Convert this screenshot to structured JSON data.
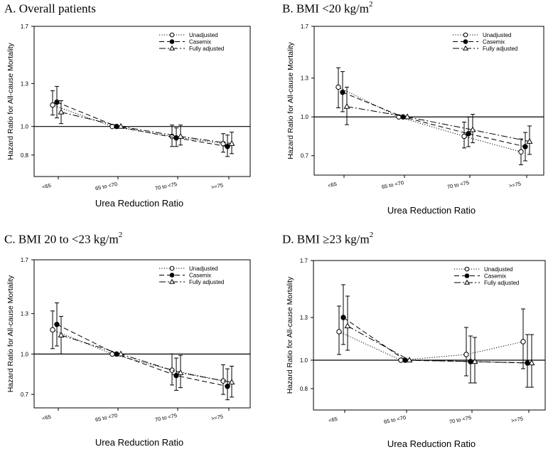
{
  "figure": {
    "panel_prefixes": [
      "A.",
      "B.",
      "C.",
      "D."
    ]
  },
  "chart_data": [
    {
      "type": "line",
      "title_prefix": "A.",
      "title_main": "Overall patients",
      "title_super": "",
      "xlabel": "Urea Reduction Ratio",
      "ylabel": "Hazard Ratio for All-cause Mortality",
      "ylim": [
        0.65,
        1.7
      ],
      "yticks": [
        0.8,
        1.0,
        1.3,
        1.7
      ],
      "ytick_labels": [
        "0.8",
        "1.0",
        "1.3",
        "1.7"
      ],
      "reference_line": 1.0,
      "categories": [
        "<65",
        "65 to <70",
        "70 to <75",
        ">=75"
      ],
      "series": [
        {
          "name": "Unadjusted",
          "style": "dotted",
          "marker": "open-circle",
          "values": [
            1.15,
            1.0,
            0.93,
            0.88
          ],
          "lower": [
            1.08,
            1.0,
            0.86,
            0.82
          ],
          "upper": [
            1.25,
            1.0,
            1.01,
            0.95
          ]
        },
        {
          "name": "Casemix",
          "style": "dashed",
          "marker": "filled-circle",
          "values": [
            1.17,
            1.0,
            0.92,
            0.86
          ],
          "lower": [
            1.06,
            1.0,
            0.86,
            0.79
          ],
          "upper": [
            1.28,
            1.0,
            0.99,
            0.94
          ]
        },
        {
          "name": "Fully adjusted",
          "style": "dashdot",
          "marker": "open-triangle",
          "values": [
            1.1,
            1.0,
            0.93,
            0.88
          ],
          "lower": [
            1.02,
            1.0,
            0.87,
            0.81
          ],
          "upper": [
            1.18,
            1.0,
            1.01,
            0.96
          ]
        }
      ]
    },
    {
      "type": "line",
      "title_prefix": "B.",
      "title_main": "BMI <20 kg/m",
      "title_super": "2",
      "xlabel": "Urea Reduction Ratio",
      "ylabel": "Hazard Ratio for All-cause Mortality",
      "ylim": [
        0.55,
        1.7
      ],
      "yticks": [
        0.7,
        1.0,
        1.3,
        1.7
      ],
      "ytick_labels": [
        "0.7",
        "1.0",
        "1.3",
        "1.7"
      ],
      "reference_line": 1.0,
      "categories": [
        "<65",
        "65 to <70",
        "70 to <75",
        ">=75"
      ],
      "series": [
        {
          "name": "Unadjusted",
          "style": "dotted",
          "marker": "open-circle",
          "values": [
            1.23,
            1.0,
            0.85,
            0.73
          ],
          "lower": [
            1.07,
            1.0,
            0.76,
            0.63
          ],
          "upper": [
            1.38,
            1.0,
            0.96,
            0.83
          ]
        },
        {
          "name": "Casemix",
          "style": "dashed",
          "marker": "filled-circle",
          "values": [
            1.19,
            1.0,
            0.87,
            0.77
          ],
          "lower": [
            1.04,
            1.0,
            0.77,
            0.66
          ],
          "upper": [
            1.35,
            1.0,
            1.0,
            0.88
          ]
        },
        {
          "name": "Fully adjusted",
          "style": "dashdot",
          "marker": "open-triangle",
          "values": [
            1.08,
            1.0,
            0.9,
            0.81
          ],
          "lower": [
            0.94,
            1.0,
            0.8,
            0.71
          ],
          "upper": [
            1.23,
            1.0,
            1.02,
            0.93
          ]
        }
      ]
    },
    {
      "type": "line",
      "title_prefix": "C.",
      "title_main": "BMI 20 to <23 kg/m",
      "title_super": "2",
      "xlabel": "Urea Reduction Ratio",
      "ylabel": "Hazard Ratio for All-cause Mortality",
      "ylim": [
        0.6,
        1.7
      ],
      "yticks": [
        0.7,
        1.0,
        1.3,
        1.7
      ],
      "ytick_labels": [
        "0.7",
        "1.0",
        "1.3",
        "1.7"
      ],
      "reference_line": 1.0,
      "categories": [
        "<65",
        "65 to <70",
        "70 to <75",
        ">=75"
      ],
      "series": [
        {
          "name": "Unadjusted",
          "style": "dotted",
          "marker": "open-circle",
          "values": [
            1.18,
            1.0,
            0.88,
            0.8
          ],
          "lower": [
            1.04,
            1.0,
            0.77,
            0.7
          ],
          "upper": [
            1.32,
            1.0,
            1.0,
            0.92
          ]
        },
        {
          "name": "Casemix",
          "style": "dashed",
          "marker": "filled-circle",
          "values": [
            1.22,
            1.0,
            0.84,
            0.76
          ],
          "lower": [
            1.06,
            1.0,
            0.73,
            0.66
          ],
          "upper": [
            1.38,
            1.0,
            0.97,
            0.89
          ]
        },
        {
          "name": "Fully adjusted",
          "style": "dashdot",
          "marker": "open-triangle",
          "values": [
            1.14,
            1.0,
            0.86,
            0.79
          ],
          "lower": [
            1.0,
            1.0,
            0.75,
            0.68
          ],
          "upper": [
            1.28,
            1.0,
            0.99,
            0.91
          ]
        }
      ]
    },
    {
      "type": "line",
      "title_prefix": "D.",
      "title_main": "BMI ≥23 kg/m",
      "title_super": "2",
      "xlabel": "Urea Reduction Ratio",
      "ylabel": "Hazard Ratio for All-cause Mortality",
      "ylim": [
        0.65,
        1.7
      ],
      "yticks": [
        0.8,
        1.0,
        1.3,
        1.7
      ],
      "ytick_labels": [
        "0.8",
        "1.0",
        "1.3",
        "1.7"
      ],
      "reference_line": 1.0,
      "categories": [
        "<65",
        "65 to <70",
        "70 to <75",
        ">=75"
      ],
      "series": [
        {
          "name": "Unadjusted",
          "style": "dotted",
          "marker": "open-circle",
          "values": [
            1.2,
            1.0,
            1.04,
            1.13
          ],
          "lower": [
            1.04,
            1.0,
            0.89,
            0.94
          ],
          "upper": [
            1.38,
            1.0,
            1.23,
            1.36
          ]
        },
        {
          "name": "Casemix",
          "style": "dashed",
          "marker": "filled-circle",
          "values": [
            1.3,
            1.0,
            0.99,
            0.98
          ],
          "lower": [
            1.11,
            1.0,
            0.84,
            0.81
          ],
          "upper": [
            1.53,
            1.0,
            1.17,
            1.18
          ]
        },
        {
          "name": "Fully adjusted",
          "style": "dashdot",
          "marker": "open-triangle",
          "values": [
            1.24,
            1.0,
            0.99,
            0.98
          ],
          "lower": [
            1.07,
            1.0,
            0.84,
            0.81
          ],
          "upper": [
            1.45,
            1.0,
            1.16,
            1.18
          ]
        }
      ]
    }
  ]
}
